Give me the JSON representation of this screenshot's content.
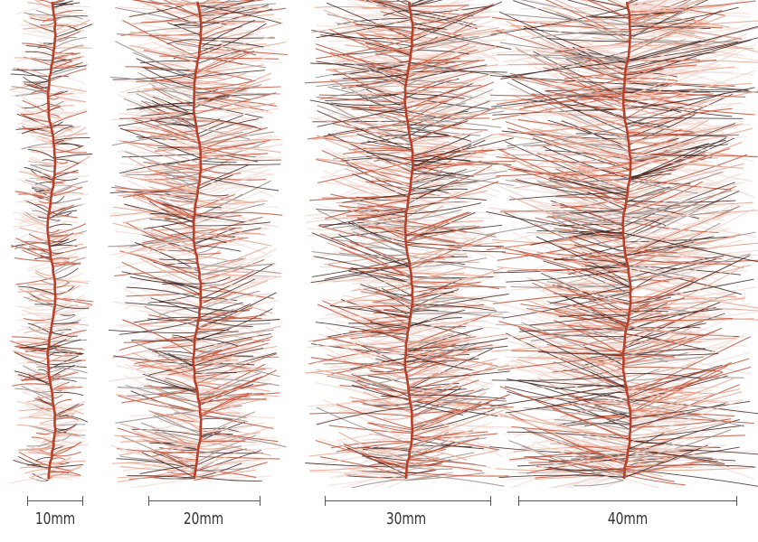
{
  "samples": [
    {
      "label": "10mm",
      "width_mm": 10
    },
    {
      "label": "20mm",
      "width_mm": 20
    },
    {
      "label": "30mm",
      "width_mm": 30
    },
    {
      "label": "40mm",
      "width_mm": 40
    }
  ],
  "colors": {
    "core": "#b8402a",
    "fiber_dark": "#3a1e1a",
    "fiber_rust": "#c5553b",
    "fiber_peach": "#e8a58e",
    "fiber_pale": "#f2d6cc",
    "fiber_grey": "#9a8f8c",
    "scale_line": "#555555",
    "label_text": "#333333"
  }
}
